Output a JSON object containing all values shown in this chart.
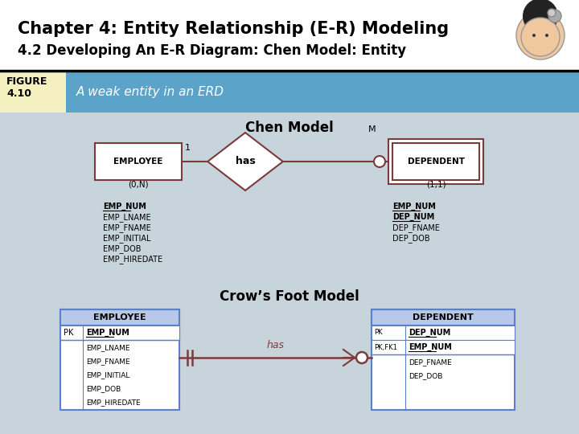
{
  "title_line1": "Chapter 4: Entity Relationship (E-R) Modeling",
  "title_line2": "4.2 Developing An E-R Diagram: Chen Model: Entity",
  "figure_label": "FIGURE\n4.10",
  "figure_desc": "A weak entity in an ERD",
  "chen_title": "Chen Model",
  "crows_title": "Crow’s Foot Model",
  "bg_color": "#c8d4dc",
  "header_bg": "#5ba3c9",
  "title_bg": "#ffffff",
  "figure_label_bg": "#f5f0c0",
  "border_color": "#7b3b3b",
  "entity_border": "#7b3b3b",
  "emp_attrs_chen": [
    "EMP_NUM",
    "EMP_LNAME",
    "EMP_FNAME",
    "EMP_INITIAL",
    "EMP_DOB",
    "EMP_HIREDATE"
  ],
  "dep_attrs_chen": [
    "EMP_NUM",
    "DEP_NUM",
    "DEP_FNAME",
    "DEP_DOB"
  ],
  "emp_pk_attr": "EMP_NUM",
  "emp_attrs_crow": [
    "EMP_LNAME",
    "EMP_FNAME",
    "EMP_INITIAL",
    "EMP_DOB",
    "EMP_HIREDATE"
  ],
  "dep_pk_attrs": [
    "DEP_NUM",
    "EMP_NUM"
  ],
  "dep_attrs_crow": [
    "DEP_FNAME",
    "DEP_DOB"
  ]
}
